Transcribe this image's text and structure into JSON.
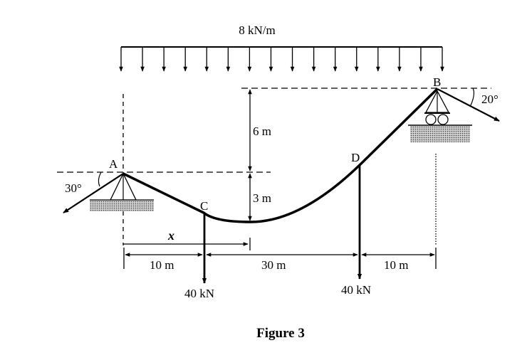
{
  "load": {
    "label": "8 kN/m"
  },
  "points": {
    "a": "A",
    "b": "B",
    "c": "C",
    "d": "D"
  },
  "angles": {
    "left": "30°",
    "right": "20°"
  },
  "heights": {
    "upper": "6 m",
    "lower": "3 m"
  },
  "spans": {
    "x_label": "x",
    "a_to_c": "10 m",
    "c_to_d": "30 m",
    "d_to_b": "10 m"
  },
  "forces": {
    "at_c": "40 kN",
    "at_d": "40 kN"
  },
  "caption": "Figure 3"
}
